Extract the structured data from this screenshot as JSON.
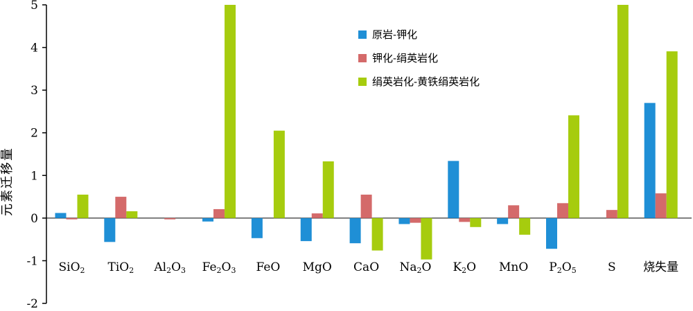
{
  "chart_data": {
    "type": "bar",
    "title": "",
    "xlabel": "",
    "ylabel": "元素迁移量",
    "ylim": [
      -2,
      5
    ],
    "yticks": [
      5,
      4,
      3,
      2,
      1,
      0,
      -1,
      -2
    ],
    "grid": false,
    "legend_position": "top-center",
    "categories": [
      {
        "base": "SiO",
        "sub": "2",
        "post": ""
      },
      {
        "base": "TiO",
        "sub": "2",
        "post": ""
      },
      {
        "base": "Al",
        "sub": "2",
        "post": "O",
        "sub2": "3"
      },
      {
        "base": "Fe",
        "sub": "2",
        "post": "O",
        "sub2": "3"
      },
      {
        "base": "FeO",
        "sub": "",
        "post": ""
      },
      {
        "base": "MgO",
        "sub": "",
        "post": ""
      },
      {
        "base": "CaO",
        "sub": "",
        "post": ""
      },
      {
        "base": "Na",
        "sub": "2",
        "post": "O"
      },
      {
        "base": "K",
        "sub": "2",
        "post": "O"
      },
      {
        "base": "MnO",
        "sub": "",
        "post": ""
      },
      {
        "base": "P",
        "sub": "2",
        "post": "O",
        "sub2": "5"
      },
      {
        "base": "S",
        "sub": "",
        "post": ""
      },
      {
        "base": "烧失量",
        "sub": "",
        "post": ""
      }
    ],
    "series": [
      {
        "name": "原岩-钾化",
        "color": "#1f8fd6",
        "values": [
          0.12,
          -0.56,
          0.0,
          -0.08,
          -0.47,
          -0.54,
          -0.59,
          -0.14,
          1.34,
          -0.14,
          -0.72,
          0.0,
          2.7
        ]
      },
      {
        "name": "钾化-绢英岩化",
        "color": "#d46a6a",
        "values": [
          -0.03,
          0.5,
          -0.03,
          0.21,
          0.0,
          0.11,
          0.55,
          -0.11,
          -0.09,
          0.3,
          0.35,
          0.19,
          0.58
        ]
      },
      {
        "name": "绢英岩化-黄铁绢英岩化",
        "color": "#a6cc0e",
        "values": [
          0.55,
          0.16,
          0.0,
          5.0,
          2.05,
          1.33,
          -0.76,
          -0.97,
          -0.21,
          -0.39,
          2.41,
          5.0,
          3.91
        ]
      }
    ]
  }
}
